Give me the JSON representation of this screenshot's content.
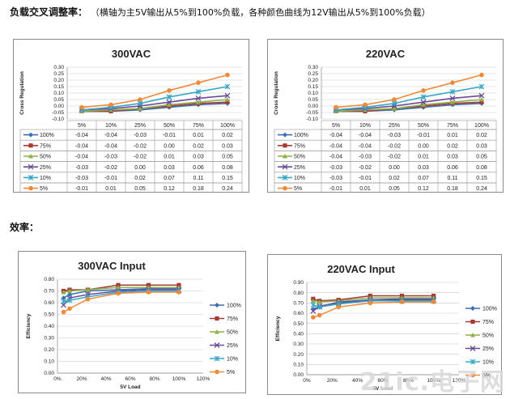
{
  "heading": {
    "main": "负载交叉调整率：",
    "note": "（横轴为主5V输出从5%到100%负载，各种颜色曲线为12V输出从5%到100%负载）"
  },
  "efficiency_heading": "效率：",
  "watermark": "21ic.电子网",
  "colors": {
    "s100": "#3b6fb0",
    "s75": "#a33a36",
    "s50": "#8db04a",
    "s25": "#6a4a96",
    "s10": "#3aa7c7",
    "s5": "#ee8a3a"
  },
  "chart_data": [
    {
      "type": "table",
      "title": "300VAC",
      "ylabel": "Cross Regulation",
      "ylim": [
        -0.1,
        0.3
      ],
      "yticks": [
        "0.30",
        "0.25",
        "0.20",
        "0.15",
        "0.10",
        "0.05",
        "0.00",
        "-0.05",
        "-0.10"
      ],
      "categories": [
        "5%",
        "10%",
        "25%",
        "50%",
        "75%",
        "100%"
      ],
      "series": [
        {
          "name": "100%",
          "values": [
            -0.04,
            -0.04,
            -0.03,
            -0.01,
            0.01,
            0.02
          ]
        },
        {
          "name": "75%",
          "values": [
            -0.04,
            -0.04,
            -0.02,
            0.0,
            0.02,
            0.03
          ]
        },
        {
          "name": "50%",
          "values": [
            -0.04,
            -0.03,
            -0.02,
            0.01,
            0.03,
            0.05
          ]
        },
        {
          "name": "25%",
          "values": [
            -0.03,
            -0.02,
            0.0,
            0.03,
            0.06,
            0.08
          ]
        },
        {
          "name": "10%",
          "values": [
            -0.03,
            -0.01,
            0.02,
            0.07,
            0.11,
            0.15
          ]
        },
        {
          "name": "5%",
          "values": [
            -0.01,
            0.01,
            0.05,
            0.12,
            0.18,
            0.24
          ]
        }
      ],
      "cells": [
        [
          "-0.04",
          "-0.04",
          "-0.03",
          "-0.01",
          "0.01",
          "0.02"
        ],
        [
          "-0.04",
          "-0.04",
          "-0.02",
          "0.00",
          "0.02",
          "0.03"
        ],
        [
          "-0.04",
          "-0.03",
          "-0.02",
          "0.01",
          "0.03",
          "0.05"
        ],
        [
          "-0.03",
          "-0.02",
          "0.00",
          "0.03",
          "0.06",
          "0.08"
        ],
        [
          "-0.03",
          "-0.01",
          "0.02",
          "0.07",
          "0.11",
          "0.15"
        ],
        [
          "-0.01",
          "0.01",
          "0.05",
          "0.12",
          "0.18",
          "0.24"
        ]
      ]
    },
    {
      "type": "table",
      "title": "220VAC",
      "ylabel": "Cross Regulation",
      "ylim": [
        -0.1,
        0.3
      ],
      "yticks": [
        "0.30",
        "0.25",
        "0.20",
        "0.15",
        "0.10",
        "0.05",
        "0.00",
        "-0.05",
        "-0.10"
      ],
      "categories": [
        "5%",
        "10%",
        "25%",
        "50%",
        "75%",
        "100%"
      ],
      "series": [
        {
          "name": "100%",
          "values": [
            -0.04,
            -0.04,
            -0.03,
            -0.01,
            0.01,
            0.02
          ]
        },
        {
          "name": "75%",
          "values": [
            -0.04,
            -0.04,
            -0.02,
            0.0,
            0.02,
            0.03
          ]
        },
        {
          "name": "50%",
          "values": [
            -0.04,
            -0.03,
            -0.02,
            0.01,
            0.03,
            0.05
          ]
        },
        {
          "name": "25%",
          "values": [
            -0.03,
            -0.02,
            0.0,
            0.03,
            0.06,
            0.08
          ]
        },
        {
          "name": "10%",
          "values": [
            -0.03,
            -0.01,
            0.02,
            0.07,
            0.11,
            0.15
          ]
        },
        {
          "name": "5%",
          "values": [
            -0.01,
            0.01,
            0.05,
            0.12,
            0.18,
            0.24
          ]
        }
      ],
      "cells": [
        [
          "-0.04",
          "-0.04",
          "-0.03",
          "-0.01",
          "0.01",
          "0.02"
        ],
        [
          "-0.04",
          "-0.04",
          "-0.02",
          "0.00",
          "0.02",
          "0.03"
        ],
        [
          "-0.04",
          "-0.03",
          "-0.02",
          "0.01",
          "0.03",
          "0.05"
        ],
        [
          "-0.03",
          "-0.02",
          "0.00",
          "0.03",
          "0.06",
          "0.08"
        ],
        [
          "-0.03",
          "-0.01",
          "0.02",
          "0.07",
          "0.11",
          "0.15"
        ],
        [
          "-0.01",
          "0.01",
          "0.05",
          "0.12",
          "0.18",
          "0.24"
        ]
      ]
    },
    {
      "type": "line",
      "title": "300VAC Input",
      "xlabel": "5V Load",
      "ylabel": "Efficiency",
      "xlim": [
        0,
        120
      ],
      "ylim": [
        0,
        0.8
      ],
      "xticks": [
        "0%",
        "20%",
        "40%",
        "60%",
        "80%",
        "100%",
        "120%"
      ],
      "yticks": [
        "0.80",
        "0.70",
        "0.60",
        "0.50",
        "0.40",
        "0.30",
        "0.20",
        "0.10",
        "0.00"
      ],
      "x": [
        5,
        10,
        25,
        50,
        75,
        100
      ],
      "series": [
        {
          "name": "100%",
          "values": [
            0.64,
            0.67,
            0.7,
            0.71,
            0.72,
            0.72
          ]
        },
        {
          "name": "75%",
          "values": [
            0.7,
            0.71,
            0.71,
            0.75,
            0.75,
            0.75
          ]
        },
        {
          "name": "50%",
          "values": [
            0.69,
            0.7,
            0.71,
            0.73,
            0.73,
            0.73
          ]
        },
        {
          "name": "25%",
          "values": [
            0.58,
            0.64,
            0.67,
            0.7,
            0.71,
            0.71
          ]
        },
        {
          "name": "10%",
          "values": [
            0.61,
            0.62,
            0.65,
            0.69,
            0.7,
            0.7
          ]
        },
        {
          "name": "5%",
          "values": [
            0.52,
            0.55,
            0.63,
            0.68,
            0.69,
            0.69
          ]
        }
      ]
    },
    {
      "type": "line",
      "title": "220VAC Input",
      "xlabel": "5V Load",
      "ylabel": "Efficiency",
      "xlim": [
        0,
        120
      ],
      "ylim": [
        0,
        0.9
      ],
      "xticks": [
        "0%",
        "20%",
        "40%",
        "60%",
        "80%",
        "100%",
        "120%"
      ],
      "yticks": [
        "0.90",
        "0.80",
        "0.70",
        "0.60",
        "0.50",
        "0.40",
        "0.30",
        "0.20",
        "0.10",
        "0.00"
      ],
      "x": [
        5,
        10,
        25,
        50,
        75,
        100
      ],
      "series": [
        {
          "name": "100%",
          "values": [
            0.64,
            0.66,
            0.71,
            0.73,
            0.74,
            0.74
          ]
        },
        {
          "name": "75%",
          "values": [
            0.74,
            0.72,
            0.73,
            0.77,
            0.77,
            0.77
          ]
        },
        {
          "name": "50%",
          "values": [
            0.72,
            0.71,
            0.72,
            0.75,
            0.75,
            0.75
          ]
        },
        {
          "name": "25%",
          "values": [
            0.62,
            0.67,
            0.7,
            0.73,
            0.73,
            0.73
          ]
        },
        {
          "name": "10%",
          "values": [
            0.68,
            0.66,
            0.69,
            0.72,
            0.72,
            0.72
          ]
        },
        {
          "name": "5%",
          "values": [
            0.56,
            0.58,
            0.66,
            0.7,
            0.71,
            0.71
          ]
        }
      ]
    }
  ]
}
